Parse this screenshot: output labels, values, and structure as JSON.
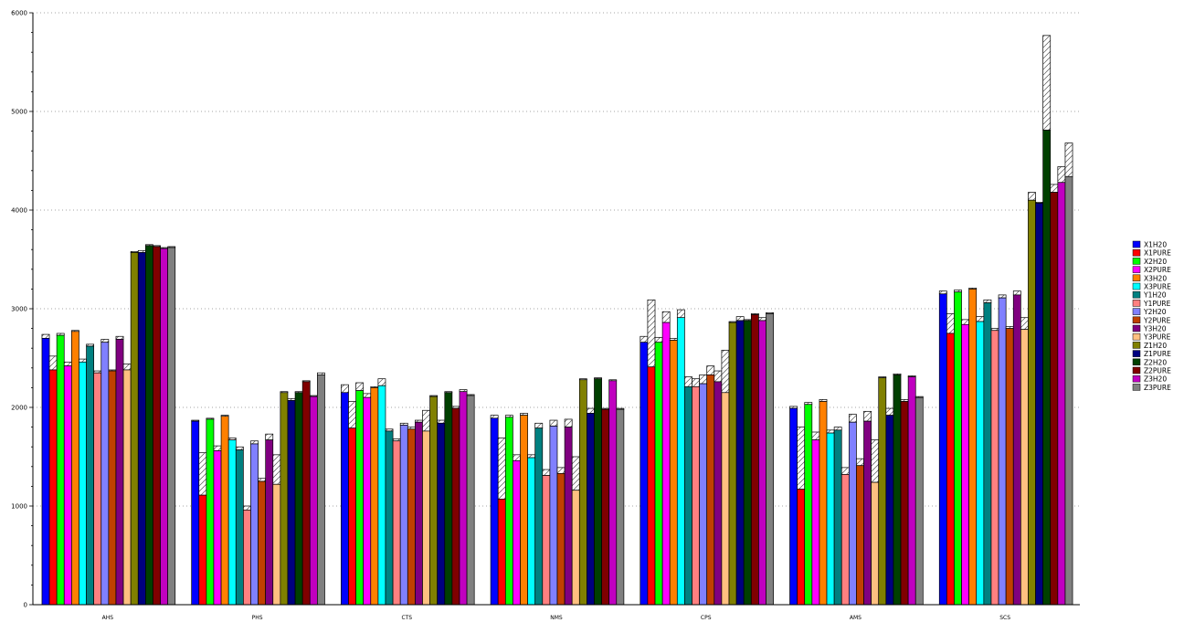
{
  "chart_data": {
    "type": "bar",
    "title": "",
    "xlabel": "",
    "ylabel": "",
    "ylim": [
      0,
      6000
    ],
    "yticks": [
      0,
      1000,
      2000,
      3000,
      4000,
      5000,
      6000
    ],
    "grid": "horizontal dotted",
    "legend_position": "right",
    "categories": [
      "AHS",
      "PHS",
      "CTS",
      "NMS",
      "CPS",
      "AMS",
      "SCS"
    ],
    "series": [
      {
        "name": "X1H20",
        "color": "#0000ff",
        "values": [
          2700,
          1860,
          2150,
          1890,
          2660,
          1990,
          3150
        ],
        "caps": [
          2740,
          1870,
          2230,
          1920,
          2720,
          2010,
          3180
        ]
      },
      {
        "name": "X1PURE",
        "color": "#ff0000",
        "values": [
          2380,
          1110,
          1790,
          1070,
          2410,
          1170,
          2750
        ],
        "caps": [
          2520,
          1540,
          2060,
          1690,
          3090,
          1800,
          2950
        ]
      },
      {
        "name": "X2H20",
        "color": "#00ff00",
        "values": [
          2730,
          1880,
          2170,
          1900,
          2660,
          2030,
          3170
        ],
        "caps": [
          2750,
          1890,
          2250,
          1920,
          2710,
          2050,
          3190
        ]
      },
      {
        "name": "X2PURE",
        "color": "#ff00ff",
        "values": [
          2420,
          1560,
          2100,
          1460,
          2860,
          1670,
          2840
        ],
        "caps": [
          2460,
          1610,
          2140,
          1520,
          2970,
          1750,
          2890
        ]
      },
      {
        "name": "X3H20",
        "color": "#ff8000",
        "values": [
          2770,
          1910,
          2200,
          1920,
          2680,
          2060,
          3200
        ],
        "caps": [
          2780,
          1920,
          2210,
          1940,
          2700,
          2080,
          3210
        ]
      },
      {
        "name": "X3PURE",
        "color": "#00ffff",
        "values": [
          2460,
          1670,
          2220,
          1490,
          2910,
          1740,
          2870
        ],
        "caps": [
          2490,
          1690,
          2290,
          1520,
          2990,
          1770,
          2920
        ]
      },
      {
        "name": "Y1H20",
        "color": "#008080",
        "values": [
          2620,
          1570,
          1760,
          1790,
          2210,
          1770,
          3060
        ],
        "caps": [
          2640,
          1600,
          1780,
          1840,
          2310,
          1800,
          3090
        ]
      },
      {
        "name": "Y1PURE",
        "color": "#ff8080",
        "values": [
          2350,
          960,
          1660,
          1310,
          2210,
          1320,
          2780
        ],
        "caps": [
          2370,
          1000,
          1680,
          1370,
          2290,
          1390,
          2800
        ]
      },
      {
        "name": "Y2H20",
        "color": "#8080ff",
        "values": [
          2660,
          1630,
          1820,
          1810,
          2240,
          1850,
          3110
        ],
        "caps": [
          2690,
          1660,
          1840,
          1870,
          2330,
          1930,
          3140
        ]
      },
      {
        "name": "Y2PURE",
        "color": "#c04000",
        "values": [
          2370,
          1250,
          1780,
          1330,
          2330,
          1410,
          2800
        ],
        "caps": [
          2380,
          1280,
          1800,
          1390,
          2420,
          1480,
          2820
        ]
      },
      {
        "name": "Y3H20",
        "color": "#800080",
        "values": [
          2690,
          1670,
          1850,
          1800,
          2260,
          1860,
          3140
        ],
        "caps": [
          2720,
          1730,
          1870,
          1880,
          2370,
          1960,
          3180
        ]
      },
      {
        "name": "Y3PURE",
        "color": "#ffc080",
        "values": [
          2380,
          1220,
          1760,
          1160,
          2150,
          1240,
          2790
        ],
        "caps": [
          2440,
          1520,
          1970,
          1500,
          2580,
          1670,
          2910
        ]
      },
      {
        "name": "Z1H20",
        "color": "#808000",
        "values": [
          3570,
          2150,
          2110,
          2280,
          2860,
          2300,
          4100
        ],
        "caps": [
          3580,
          2160,
          2120,
          2290,
          2870,
          2310,
          4180
        ]
      },
      {
        "name": "Z1PURE",
        "color": "#000080",
        "values": [
          3570,
          2070,
          1840,
          1940,
          2880,
          1920,
          4070
        ],
        "caps": [
          3590,
          2090,
          1870,
          1990,
          2920,
          1990,
          4080
        ]
      },
      {
        "name": "Z2H20",
        "color": "#004000",
        "values": [
          3640,
          2150,
          2150,
          2290,
          2880,
          2330,
          4810
        ],
        "caps": [
          3650,
          2160,
          2160,
          2300,
          2890,
          2340,
          5770
        ]
      },
      {
        "name": "Z2PURE",
        "color": "#800000",
        "values": [
          3630,
          2260,
          1990,
          1980,
          2940,
          2060,
          4180
        ],
        "caps": [
          3640,
          2270,
          2010,
          1990,
          2950,
          2080,
          4260
        ]
      },
      {
        "name": "Z3H20",
        "color": "#c000c0",
        "values": [
          3610,
          2110,
          2160,
          2270,
          2880,
          2310,
          4280
        ],
        "caps": [
          3620,
          2120,
          2180,
          2280,
          2910,
          2320,
          4440
        ]
      },
      {
        "name": "Z3PURE",
        "color": "#808080",
        "values": [
          3620,
          2330,
          2120,
          1980,
          2950,
          2100,
          4340
        ],
        "caps": [
          3630,
          2350,
          2130,
          1990,
          2960,
          2110,
          4680
        ]
      }
    ]
  }
}
